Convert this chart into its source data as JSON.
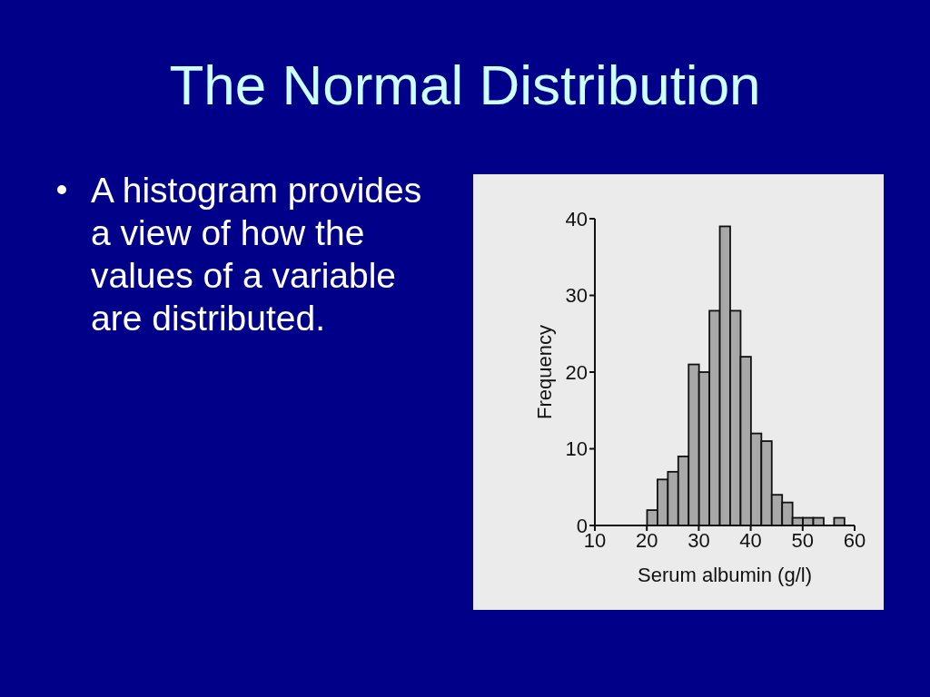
{
  "chart_data": {
    "type": "histogram",
    "title": "The Normal Distribution",
    "annotations": [
      "A histogram provides a view of how the values of a variable are distributed."
    ],
    "xlabel": "Serum albumin (g/l)",
    "ylabel": "Frequency",
    "bins": [
      20,
      22,
      24,
      26,
      28,
      30,
      32,
      34,
      36,
      38,
      40,
      42,
      44,
      46,
      48,
      50,
      52,
      54,
      56,
      58
    ],
    "values": [
      2,
      6,
      7,
      9,
      21,
      20,
      28,
      39,
      28,
      22,
      12,
      11,
      4,
      3,
      1,
      1,
      1,
      0,
      1
    ],
    "color": "#a8a8a8",
    "xlim": [
      10,
      60
    ],
    "xticks": [
      10,
      20,
      30,
      40,
      50,
      60
    ],
    "ylim": [
      0,
      40
    ],
    "yticks": [
      0,
      10,
      20,
      30,
      40
    ]
  }
}
